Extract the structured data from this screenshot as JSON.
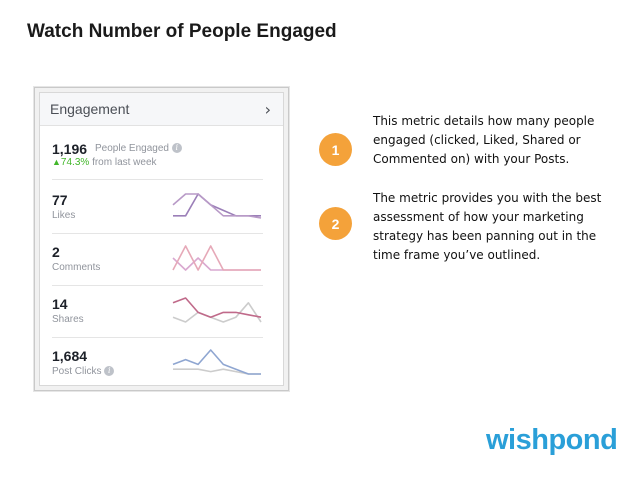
{
  "slide": {
    "title": "Watch Number of People Engaged",
    "brand": "wishpond"
  },
  "engagement_card": {
    "title": "Engagement",
    "chevron_icon": "chevron-right-icon",
    "people_engaged": {
      "value": "1,196",
      "label": "People Engaged",
      "info_icon": "info-icon",
      "trend_icon": "up-arrow-icon",
      "delta": "74.3%",
      "delta_label": "from last week"
    },
    "metrics": [
      {
        "value": "77",
        "label": "Likes",
        "info": false,
        "series": [
          {
            "color": "#b89ac7",
            "values": [
              5,
              6,
              6,
              5,
              4,
              4,
              4,
              3.8
            ]
          },
          {
            "color": "#9b7fb8",
            "values": [
              4,
              4,
              6,
              5,
              4.5,
              4,
              4,
              4
            ]
          }
        ]
      },
      {
        "value": "2",
        "label": "Comments",
        "info": false,
        "series": [
          {
            "color": "#e6a9b8",
            "values": [
              0,
              2,
              0,
              2,
              0,
              0,
              0,
              0
            ]
          },
          {
            "color": "#d9a8d0",
            "values": [
              1,
              0,
              1,
              0,
              0,
              0,
              0,
              0
            ]
          }
        ]
      },
      {
        "value": "14",
        "label": "Shares",
        "info": false,
        "series": [
          {
            "color": "#c06a8a",
            "values": [
              5,
              6,
              3,
              2,
              3,
              3,
              2.5,
              2
            ]
          },
          {
            "color": "#cccccc",
            "values": [
              2,
              1,
              3,
              2,
              1,
              2,
              5,
              1
            ]
          }
        ]
      },
      {
        "value": "1,684",
        "label": "Post Clicks",
        "info": true,
        "series": [
          {
            "color": "#8fa6d1",
            "values": [
              3,
              4,
              3,
              6,
              3,
              2,
              1,
              1
            ]
          },
          {
            "color": "#cccccc",
            "values": [
              2,
              2,
              2,
              1.5,
              2,
              1.5,
              1,
              1
            ]
          }
        ]
      }
    ]
  },
  "badges": [
    "1",
    "2"
  ],
  "descriptions": [
    "This metric details how many people engaged (clicked, Liked, Shared or Commented on) with your Posts.",
    "The metric provides you with the best assessment of how your marketing strategy has been panning out in the time frame you’ve outlined."
  ],
  "colors": {
    "badge": "#f4a23a",
    "brand": "#2a9fd8",
    "positive": "#42b72a"
  }
}
